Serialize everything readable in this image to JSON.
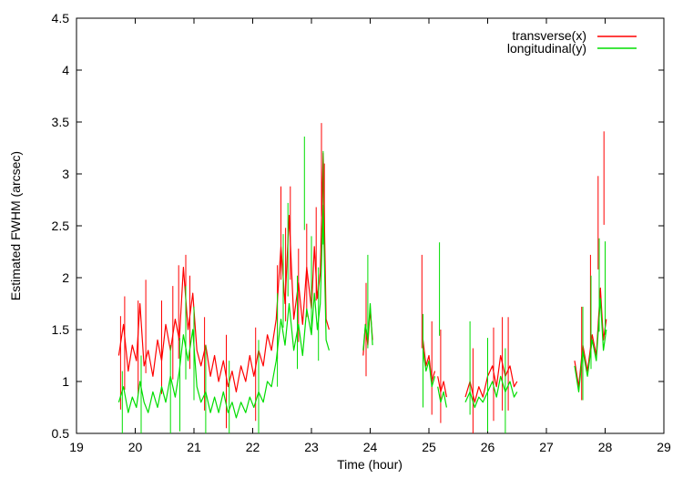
{
  "chart_data": {
    "type": "line",
    "xlabel": "Time (hour)",
    "ylabel": "Estimated FWHM (arcsec)",
    "xlim": [
      19,
      29
    ],
    "ylim": [
      0.5,
      4.5
    ],
    "x_ticks": [
      "19",
      "20",
      "21",
      "22",
      "23",
      "24",
      "25",
      "26",
      "27",
      "28",
      "29"
    ],
    "y_ticks": [
      "0.5",
      "1",
      "1.5",
      "2",
      "2.5",
      "3",
      "3.5",
      "4",
      "4.5"
    ],
    "grid": false,
    "legend_position": "top-right",
    "series": [
      {
        "name": "transverse(x)",
        "color": "#ff0000",
        "points": [
          [
            19.72,
            1.25
          ],
          [
            19.8,
            1.55
          ],
          [
            19.88,
            1.1
          ],
          [
            19.95,
            1.35
          ],
          [
            20.02,
            1.2
          ],
          [
            20.08,
            1.75
          ],
          [
            20.15,
            1.15
          ],
          [
            20.22,
            1.3
          ],
          [
            20.3,
            1.05
          ],
          [
            20.38,
            1.4
          ],
          [
            20.45,
            1.2
          ],
          [
            20.52,
            1.55
          ],
          [
            20.6,
            1.3
          ],
          [
            20.68,
            1.6
          ],
          [
            20.75,
            1.4
          ],
          [
            20.82,
            2.1
          ],
          [
            20.9,
            1.5
          ],
          [
            20.98,
            1.85
          ],
          [
            21.05,
            1.3
          ],
          [
            21.12,
            1.15
          ],
          [
            21.2,
            1.35
          ],
          [
            21.28,
            1.05
          ],
          [
            21.35,
            1.25
          ],
          [
            21.42,
            1.0
          ],
          [
            21.5,
            1.2
          ],
          [
            21.58,
            0.95
          ],
          [
            21.65,
            1.1
          ],
          [
            21.72,
            0.9
          ],
          [
            21.8,
            1.15
          ],
          [
            21.88,
            1.0
          ],
          [
            21.95,
            1.25
          ],
          [
            22.02,
            1.05
          ],
          [
            22.1,
            1.3
          ],
          [
            22.18,
            1.15
          ],
          [
            22.25,
            1.45
          ],
          [
            22.32,
            1.3
          ],
          [
            22.4,
            1.6
          ],
          [
            22.48,
            2.3
          ],
          [
            22.55,
            1.75
          ],
          [
            22.62,
            2.6
          ],
          [
            22.7,
            1.6
          ],
          [
            22.78,
            1.95
          ],
          [
            22.85,
            1.55
          ],
          [
            22.92,
            2.1
          ],
          [
            23.0,
            1.7
          ],
          [
            23.05,
            2.3
          ],
          [
            23.1,
            1.8
          ],
          [
            23.15,
            2.05
          ],
          [
            23.2,
            3.2
          ],
          [
            23.25,
            1.6
          ],
          [
            23.3,
            1.5
          ],
          null,
          [
            23.88,
            1.25
          ],
          [
            23.92,
            1.55
          ],
          [
            23.96,
            1.35
          ],
          [
            24.0,
            1.7
          ],
          [
            24.04,
            1.4
          ],
          null,
          [
            24.9,
            1.4
          ],
          [
            24.95,
            1.15
          ],
          [
            25.0,
            1.25
          ],
          [
            25.05,
            1.0
          ],
          [
            25.1,
            1.1
          ],
          null,
          [
            25.15,
            1.05
          ],
          [
            25.2,
            0.9
          ],
          [
            25.25,
            1.0
          ],
          [
            25.3,
            0.85
          ],
          null,
          [
            25.62,
            0.85
          ],
          [
            25.7,
            1.0
          ],
          [
            25.78,
            0.8
          ],
          [
            25.85,
            0.95
          ],
          [
            25.92,
            0.85
          ],
          [
            26.0,
            1.05
          ],
          [
            26.08,
            1.15
          ],
          [
            26.15,
            0.95
          ],
          [
            26.22,
            1.25
          ],
          [
            26.3,
            1.05
          ],
          [
            26.38,
            1.15
          ],
          [
            26.45,
            0.95
          ],
          [
            26.5,
            1.0
          ],
          null,
          [
            27.48,
            1.2
          ],
          [
            27.55,
            0.95
          ],
          [
            27.62,
            1.35
          ],
          [
            27.7,
            1.1
          ],
          [
            27.78,
            1.45
          ],
          [
            27.85,
            1.25
          ],
          [
            27.92,
            1.9
          ],
          [
            27.97,
            1.4
          ],
          [
            28.02,
            1.6
          ]
        ],
        "peaks": [
          [
            19.75,
            1.63
          ],
          [
            19.82,
            1.82
          ],
          [
            20.05,
            1.78
          ],
          [
            20.18,
            1.98
          ],
          [
            20.45,
            1.78
          ],
          [
            20.64,
            1.92
          ],
          [
            20.74,
            2.12
          ],
          [
            20.86,
            2.22
          ],
          [
            20.93,
            2.02
          ],
          [
            21.18,
            1.62
          ],
          [
            21.55,
            1.45
          ],
          [
            22.05,
            1.52
          ],
          [
            22.42,
            2.12
          ],
          [
            22.48,
            2.88
          ],
          [
            22.56,
            2.48
          ],
          [
            22.64,
            2.88
          ],
          [
            22.78,
            2.28
          ],
          [
            22.92,
            2.52
          ],
          [
            23.08,
            2.68
          ],
          [
            23.17,
            3.49
          ],
          [
            23.22,
            3.1
          ],
          [
            23.93,
            1.95
          ],
          [
            24.88,
            2.22
          ],
          [
            25.05,
            1.58
          ],
          [
            25.2,
            1.5
          ],
          [
            25.75,
            1.32
          ],
          [
            26.1,
            1.52
          ],
          [
            26.25,
            1.62
          ],
          [
            26.35,
            1.62
          ],
          [
            27.6,
            1.72
          ],
          [
            27.75,
            2.22
          ],
          [
            27.88,
            2.98
          ],
          [
            27.98,
            3.41
          ]
        ]
      },
      {
        "name": "longitudinal(y)",
        "color": "#00dd00",
        "points": [
          [
            19.72,
            0.8
          ],
          [
            19.8,
            0.95
          ],
          [
            19.88,
            0.7
          ],
          [
            19.95,
            0.85
          ],
          [
            20.02,
            0.75
          ],
          [
            20.08,
            1.0
          ],
          [
            20.15,
            0.8
          ],
          [
            20.22,
            0.7
          ],
          [
            20.3,
            0.9
          ],
          [
            20.38,
            0.75
          ],
          [
            20.45,
            0.95
          ],
          [
            20.52,
            0.8
          ],
          [
            20.6,
            1.05
          ],
          [
            20.68,
            0.85
          ],
          [
            20.75,
            1.1
          ],
          [
            20.82,
            1.45
          ],
          [
            20.9,
            1.2
          ],
          [
            20.98,
            1.5
          ],
          [
            21.05,
            0.95
          ],
          [
            21.12,
            0.8
          ],
          [
            21.2,
            0.9
          ],
          [
            21.28,
            0.7
          ],
          [
            21.35,
            0.85
          ],
          [
            21.42,
            0.7
          ],
          [
            21.5,
            0.9
          ],
          [
            21.58,
            0.7
          ],
          [
            21.65,
            0.8
          ],
          [
            21.72,
            0.65
          ],
          [
            21.8,
            0.8
          ],
          [
            21.88,
            0.7
          ],
          [
            21.95,
            0.85
          ],
          [
            22.02,
            0.75
          ],
          [
            22.1,
            0.9
          ],
          [
            22.18,
            0.8
          ],
          [
            22.25,
            1.0
          ],
          [
            22.32,
            0.95
          ],
          [
            22.4,
            1.2
          ],
          [
            22.48,
            1.6
          ],
          [
            22.55,
            1.35
          ],
          [
            22.62,
            1.75
          ],
          [
            22.7,
            1.3
          ],
          [
            22.78,
            1.55
          ],
          [
            22.85,
            1.25
          ],
          [
            22.92,
            1.7
          ],
          [
            23.0,
            1.45
          ],
          [
            23.05,
            1.85
          ],
          [
            23.1,
            1.5
          ],
          [
            23.15,
            1.75
          ],
          [
            23.2,
            2.7
          ],
          [
            23.25,
            1.4
          ],
          [
            23.3,
            1.3
          ],
          null,
          [
            23.88,
            1.3
          ],
          [
            23.92,
            1.55
          ],
          [
            23.96,
            1.4
          ],
          [
            24.0,
            1.75
          ],
          [
            24.04,
            1.35
          ],
          null,
          [
            24.9,
            1.3
          ],
          [
            24.95,
            1.1
          ],
          [
            25.0,
            1.2
          ],
          [
            25.05,
            0.95
          ],
          [
            25.1,
            1.05
          ],
          null,
          [
            25.15,
            0.95
          ],
          [
            25.2,
            0.8
          ],
          [
            25.25,
            0.9
          ],
          [
            25.3,
            0.75
          ],
          null,
          [
            25.62,
            0.8
          ],
          [
            25.7,
            0.9
          ],
          [
            25.78,
            0.75
          ],
          [
            25.85,
            0.85
          ],
          [
            25.92,
            0.8
          ],
          [
            26.0,
            0.9
          ],
          [
            26.08,
            1.0
          ],
          [
            26.15,
            0.85
          ],
          [
            26.22,
            1.05
          ],
          [
            26.3,
            0.9
          ],
          [
            26.38,
            1.0
          ],
          [
            26.45,
            0.85
          ],
          [
            26.5,
            0.9
          ],
          null,
          [
            27.48,
            1.15
          ],
          [
            27.55,
            0.9
          ],
          [
            27.62,
            1.3
          ],
          [
            27.7,
            1.05
          ],
          [
            27.78,
            1.4
          ],
          [
            27.85,
            1.2
          ],
          [
            27.92,
            1.8
          ],
          [
            27.97,
            1.3
          ],
          [
            28.02,
            1.5
          ]
        ],
        "peaks": [
          [
            19.78,
            1.1
          ],
          [
            20.1,
            1.25
          ],
          [
            20.6,
            1.35
          ],
          [
            20.76,
            1.42
          ],
          [
            20.86,
            1.92
          ],
          [
            21.0,
            1.72
          ],
          [
            21.2,
            1.35
          ],
          [
            21.6,
            1.2
          ],
          [
            22.1,
            1.4
          ],
          [
            22.42,
            1.85
          ],
          [
            22.52,
            2.42
          ],
          [
            22.6,
            2.72
          ],
          [
            22.76,
            2.02
          ],
          [
            22.88,
            3.36
          ],
          [
            23.0,
            2.4
          ],
          [
            23.12,
            2.1
          ],
          [
            23.2,
            3.22
          ],
          [
            23.96,
            2.22
          ],
          [
            24.9,
            1.65
          ],
          [
            25.18,
            2.34
          ],
          [
            25.7,
            1.58
          ],
          [
            26.0,
            1.42
          ],
          [
            26.3,
            1.32
          ],
          [
            27.62,
            1.72
          ],
          [
            27.76,
            2.02
          ],
          [
            27.9,
            2.38
          ],
          [
            28.0,
            2.35
          ]
        ]
      }
    ]
  }
}
